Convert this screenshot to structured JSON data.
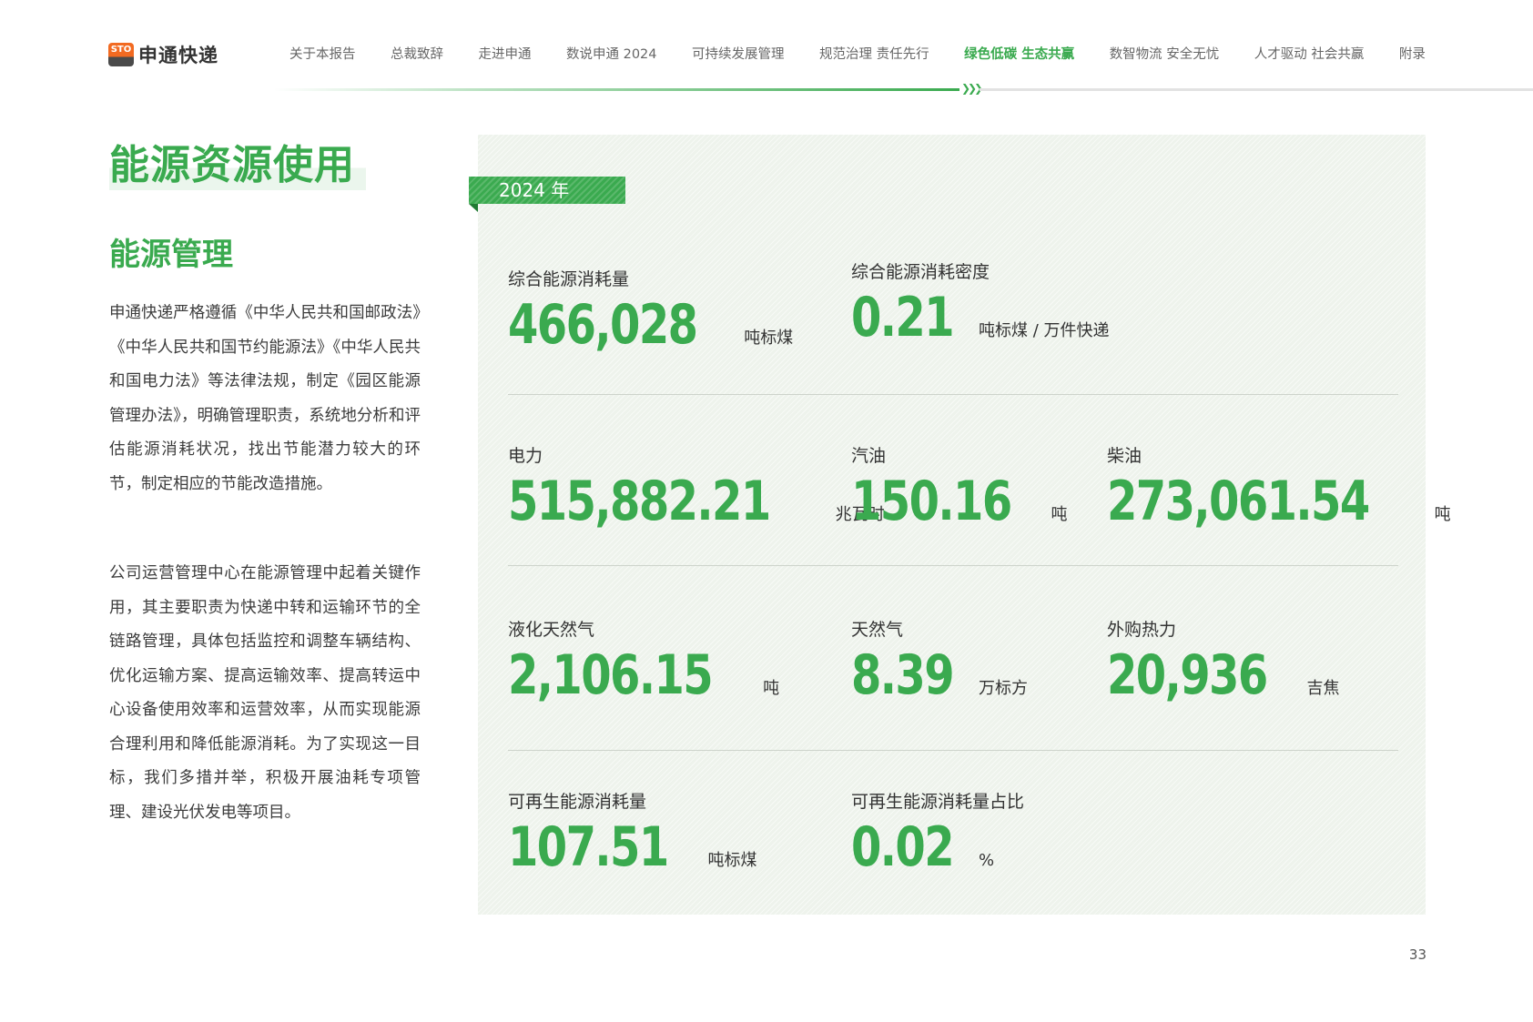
{
  "header": {
    "logo_badge": "STO",
    "logo_text": "申通快递",
    "nav": [
      {
        "label": "关于本报告"
      },
      {
        "label": "总裁致辞"
      },
      {
        "label": "走进申通"
      },
      {
        "label": "数说申通 2024"
      },
      {
        "label": "可持续发展管理"
      },
      {
        "label": "规范治理 责任先行"
      },
      {
        "label": "绿色低碳 生态共赢",
        "active": true
      },
      {
        "label": "数智物流 安全无忧"
      },
      {
        "label": "人才驱动 社会共赢"
      },
      {
        "label": "附录"
      }
    ],
    "progress_fraction": 0.545
  },
  "left": {
    "section_title": "能源资源使用",
    "sub_title": "能源管理",
    "paragraphs": [
      "申通快递严格遵循《中华人民共和国邮政法》《中华人民共和国节约能源法》《中华人民共和国电力法》等法律法规，制定《园区能源管理办法》，明确管理职责，系统地分析和评估能源消耗状况，找出节能潜力较大的环节，制定相应的节能改造措施。",
      "公司运营管理中心在能源管理中起着关键作用，其主要职责为快递中转和运输环节的全链路管理，具体包括监控和调整车辆结构、优化运输方案、提高运输效率、提高转运中心设备使用效率和运营效率，从而实现能源合理利用和降低能源消耗。为了实现这一目标，我们多措并举，积极开展油耗专项管理、建设光伏发电等项目。"
    ]
  },
  "panel": {
    "year_tag": "2024 年",
    "metrics": {
      "total_energy": {
        "label": "综合能源消耗量",
        "value": "466,028",
        "unit": "吨标煤"
      },
      "energy_density": {
        "label": "综合能源消耗密度",
        "value": "0.21",
        "unit": "吨标煤 / 万件快递"
      },
      "electricity": {
        "label": "电力",
        "value": "515,882.21",
        "unit": "兆瓦时"
      },
      "gasoline": {
        "label": "汽油",
        "value": "150.16",
        "unit": "吨"
      },
      "diesel": {
        "label": "柴油",
        "value": "273,061.54",
        "unit": "吨"
      },
      "lng": {
        "label": "液化天然气",
        "value": "2,106.15",
        "unit": "吨"
      },
      "natural_gas": {
        "label": "天然气",
        "value": "8.39",
        "unit": "万标方"
      },
      "heat": {
        "label": "外购热力",
        "value": "20,936",
        "unit": "吉焦"
      },
      "renewable": {
        "label": "可再生能源消耗量",
        "value": "107.51",
        "unit": "吨标煤"
      },
      "renewable_share": {
        "label": "可再生能源消耗量占比",
        "value": "0.02",
        "unit": "%"
      }
    }
  },
  "page_number": "33",
  "colors": {
    "accent": "#3aaa4f",
    "logo_orange": "#f26a21",
    "panel_bg": "#eef3ec"
  }
}
